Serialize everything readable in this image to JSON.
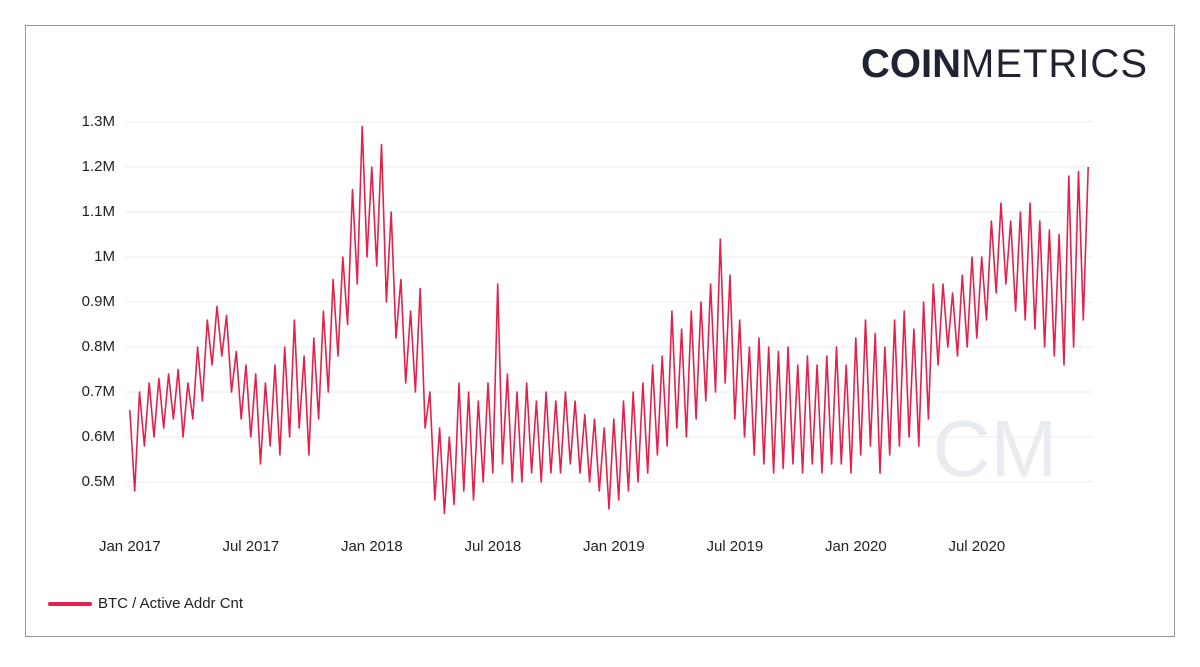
{
  "chart_data": {
    "type": "line",
    "logo_bold": "COIN",
    "logo_light": "METRICS",
    "watermark": "CM",
    "x": [
      2017,
      2017.02,
      2017.04,
      2017.06,
      2017.08,
      2017.1,
      2017.12,
      2017.14,
      2017.16,
      2017.18,
      2017.2,
      2017.22,
      2017.24,
      2017.26,
      2017.28,
      2017.3,
      2017.32,
      2017.34,
      2017.36,
      2017.38,
      2017.4,
      2017.42,
      2017.44,
      2017.46,
      2017.48,
      2017.5,
      2017.52,
      2017.54,
      2017.56,
      2017.58,
      2017.6,
      2017.62,
      2017.64,
      2017.66,
      2017.68,
      2017.7,
      2017.72,
      2017.74,
      2017.76,
      2017.78,
      2017.8,
      2017.82,
      2017.84,
      2017.86,
      2017.88,
      2017.9,
      2017.92,
      2017.94,
      2017.96,
      2017.98,
      2018,
      2018.02,
      2018.04,
      2018.06,
      2018.08,
      2018.1,
      2018.12,
      2018.14,
      2018.16,
      2018.18,
      2018.2,
      2018.22,
      2018.24,
      2018.26,
      2018.28,
      2018.3,
      2018.32,
      2018.34,
      2018.36,
      2018.38,
      2018.4,
      2018.42,
      2018.44,
      2018.46,
      2018.48,
      2018.5,
      2018.52,
      2018.54,
      2018.56,
      2018.58,
      2018.6,
      2018.62,
      2018.64,
      2018.66,
      2018.68,
      2018.7,
      2018.72,
      2018.74,
      2018.76,
      2018.78,
      2018.8,
      2018.82,
      2018.84,
      2018.86,
      2018.88,
      2018.9,
      2018.92,
      2018.94,
      2018.96,
      2018.98,
      2019,
      2019.02,
      2019.04,
      2019.06,
      2019.08,
      2019.1,
      2019.12,
      2019.14,
      2019.16,
      2019.18,
      2019.2,
      2019.22,
      2019.24,
      2019.26,
      2019.28,
      2019.3,
      2019.32,
      2019.34,
      2019.36,
      2019.38,
      2019.4,
      2019.42,
      2019.44,
      2019.46,
      2019.48,
      2019.5,
      2019.52,
      2019.54,
      2019.56,
      2019.58,
      2019.6,
      2019.62,
      2019.64,
      2019.66,
      2019.68,
      2019.7,
      2019.72,
      2019.74,
      2019.76,
      2019.78,
      2019.8,
      2019.82,
      2019.84,
      2019.86,
      2019.88,
      2019.9,
      2019.92,
      2019.94,
      2019.96,
      2019.98,
      2020,
      2020.02,
      2020.04,
      2020.06,
      2020.08,
      2020.1,
      2020.12,
      2020.14,
      2020.16,
      2020.18,
      2020.2,
      2020.22,
      2020.24,
      2020.26,
      2020.28,
      2020.3,
      2020.32,
      2020.34,
      2020.36,
      2020.38,
      2020.4,
      2020.42,
      2020.44,
      2020.46,
      2020.48,
      2020.5,
      2020.52,
      2020.54,
      2020.56,
      2020.58,
      2020.6,
      2020.62,
      2020.64,
      2020.66,
      2020.68,
      2020.7,
      2020.72,
      2020.74,
      2020.76,
      2020.78,
      2020.8,
      2020.82,
      2020.84,
      2020.86,
      2020.88,
      2020.9,
      2020.92,
      2020.94,
      2020.96
    ],
    "series": [
      {
        "name": "BTC / Active Addr Cnt",
        "color": "#e3224c",
        "values": [
          660000,
          480000,
          700000,
          580000,
          720000,
          600000,
          730000,
          620000,
          740000,
          640000,
          750000,
          600000,
          720000,
          640000,
          800000,
          680000,
          860000,
          760000,
          890000,
          780000,
          870000,
          700000,
          790000,
          640000,
          760000,
          600000,
          740000,
          540000,
          720000,
          580000,
          760000,
          560000,
          800000,
          600000,
          860000,
          620000,
          780000,
          560000,
          820000,
          640000,
          880000,
          700000,
          950000,
          780000,
          1000000,
          850000,
          1150000,
          940000,
          1290000,
          1000000,
          1200000,
          980000,
          1250000,
          900000,
          1100000,
          820000,
          950000,
          720000,
          880000,
          700000,
          930000,
          620000,
          700000,
          460000,
          620000,
          430000,
          600000,
          450000,
          720000,
          480000,
          700000,
          460000,
          680000,
          500000,
          720000,
          520000,
          940000,
          540000,
          740000,
          500000,
          700000,
          500000,
          720000,
          520000,
          680000,
          500000,
          700000,
          520000,
          680000,
          520000,
          700000,
          540000,
          680000,
          520000,
          650000,
          500000,
          640000,
          480000,
          620000,
          440000,
          640000,
          460000,
          680000,
          480000,
          700000,
          500000,
          720000,
          520000,
          760000,
          560000,
          780000,
          580000,
          880000,
          620000,
          840000,
          600000,
          880000,
          640000,
          900000,
          680000,
          940000,
          700000,
          1040000,
          720000,
          960000,
          640000,
          860000,
          600000,
          800000,
          560000,
          820000,
          540000,
          800000,
          520000,
          790000,
          530000,
          800000,
          540000,
          760000,
          520000,
          780000,
          540000,
          760000,
          520000,
          780000,
          540000,
          800000,
          540000,
          760000,
          520000,
          820000,
          560000,
          860000,
          580000,
          830000,
          520000,
          800000,
          560000,
          860000,
          580000,
          880000,
          600000,
          840000,
          580000,
          900000,
          640000,
          940000,
          760000,
          940000,
          800000,
          920000,
          780000,
          960000,
          800000,
          1000000,
          820000,
          1000000,
          860000,
          1080000,
          920000,
          1120000,
          940000,
          1080000,
          880000,
          1100000,
          860000,
          1120000,
          840000,
          1080000,
          800000,
          1060000,
          780000,
          1050000,
          760000,
          1180000,
          800000,
          1190000,
          860000,
          1200000
        ]
      }
    ],
    "xlim": [
      2016.98,
      2020.98
    ],
    "xticks": [
      {
        "value": 2017,
        "label": "Jan 2017"
      },
      {
        "value": 2017.5,
        "label": "Jul 2017"
      },
      {
        "value": 2018,
        "label": "Jan 2018"
      },
      {
        "value": 2018.5,
        "label": "Jul 2018"
      },
      {
        "value": 2019,
        "label": "Jan 2019"
      },
      {
        "value": 2019.5,
        "label": "Jul 2019"
      },
      {
        "value": 2020,
        "label": "Jan 2020"
      },
      {
        "value": 2020.5,
        "label": "Jul 2020"
      }
    ],
    "ylim": [
      400000,
      1300000
    ],
    "yticks": [
      {
        "value": 500000,
        "label": "0.5M"
      },
      {
        "value": 600000,
        "label": "0.6M"
      },
      {
        "value": 700000,
        "label": "0.7M"
      },
      {
        "value": 800000,
        "label": "0.8M"
      },
      {
        "value": 900000,
        "label": "0.9M"
      },
      {
        "value": 1000000,
        "label": "1M"
      },
      {
        "value": 1100000,
        "label": "1.1M"
      },
      {
        "value": 1200000,
        "label": "1.2M"
      },
      {
        "value": 1300000,
        "label": "1.3M"
      }
    ],
    "grid": true
  }
}
